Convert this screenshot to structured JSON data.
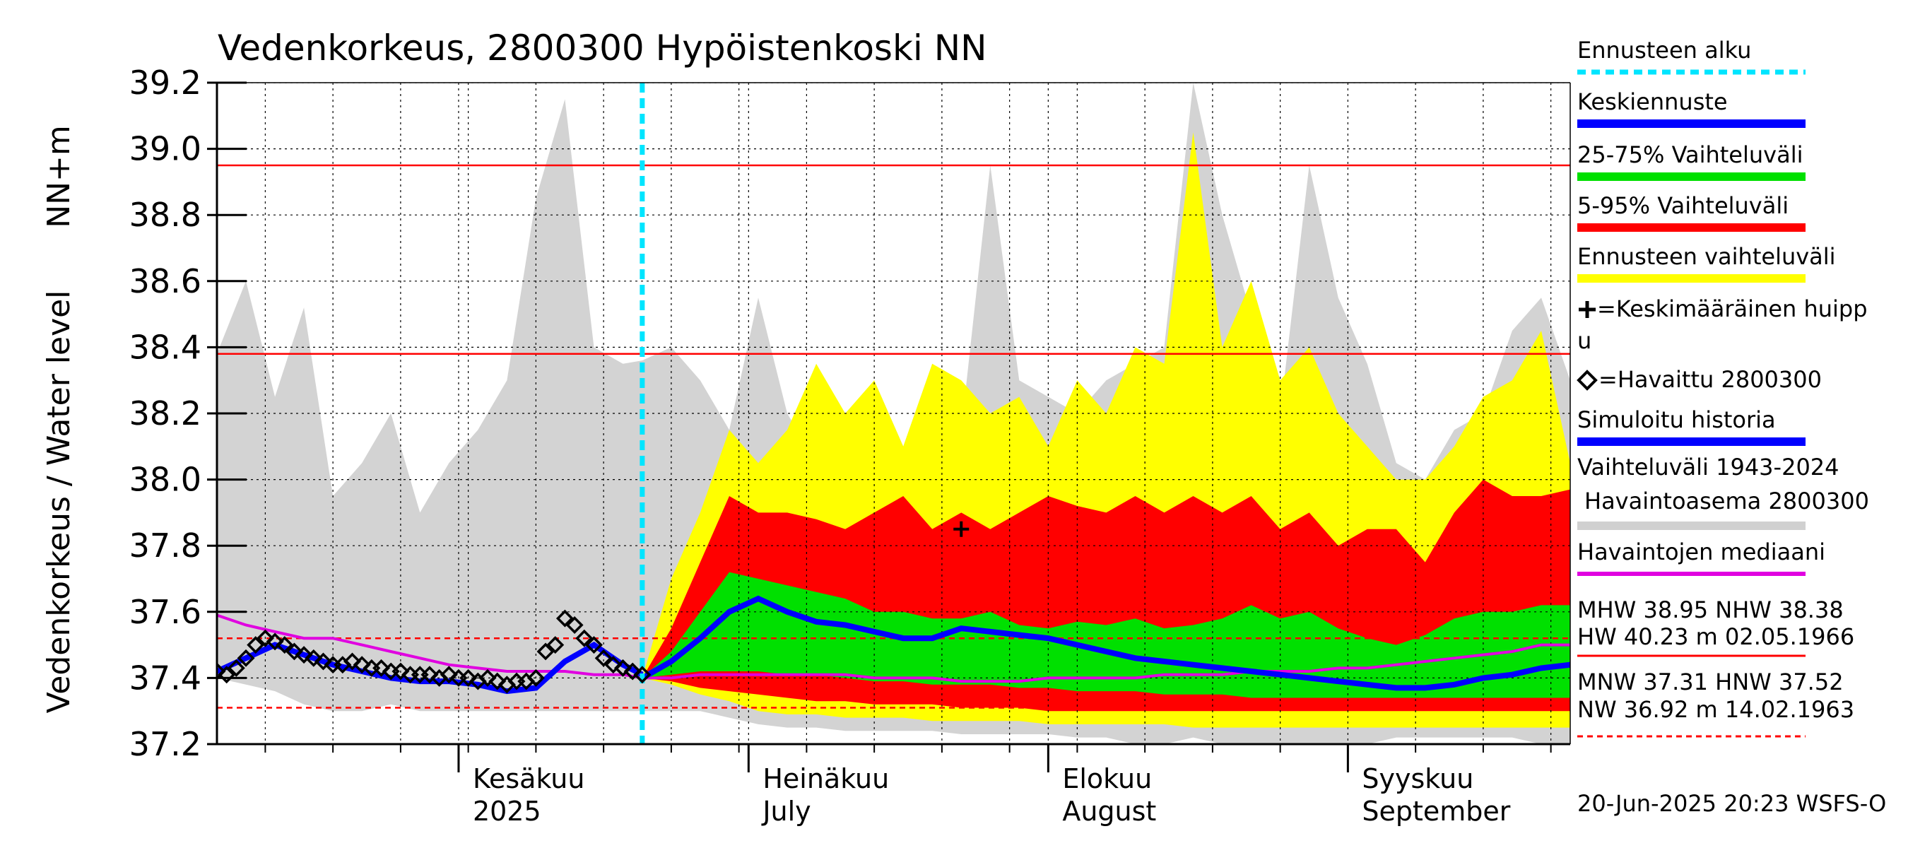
{
  "chart_data": {
    "type": "area",
    "title": "Vedenkorkeus, 2800300 Hypöistenkoski NN",
    "ylabel_line1": "NN+m",
    "ylabel_line2": "Vedenkorkeus / Water level",
    "ylim": [
      37.2,
      39.2
    ],
    "yticks": [
      "39.2",
      "39.0",
      "38.8",
      "38.6",
      "38.4",
      "38.2",
      "38.0",
      "37.8",
      "37.6",
      "37.4",
      "37.2"
    ],
    "xlim": [
      "2025-05-07",
      "2025-09-24"
    ],
    "month_labels": [
      {
        "date": "2025-06-01",
        "line1": "Kesäkuu",
        "line2": "2025"
      },
      {
        "date": "2025-07-01",
        "line1": "Heinäkuu",
        "line2": "July"
      },
      {
        "date": "2025-08-01",
        "line1": "Elokuu",
        "line2": "August"
      },
      {
        "date": "2025-09-01",
        "line1": "Syyskuu",
        "line2": "September"
      }
    ],
    "forecast_start": "2025-06-20",
    "reference_lines": {
      "MHW": 38.95,
      "NHW": 38.38,
      "HNW": 37.52,
      "MNW": 37.31
    },
    "x": [
      "2025-05-07",
      "2025-05-10",
      "2025-05-13",
      "2025-05-16",
      "2025-05-19",
      "2025-05-22",
      "2025-05-25",
      "2025-05-28",
      "2025-05-31",
      "2025-06-03",
      "2025-06-06",
      "2025-06-09",
      "2025-06-12",
      "2025-06-15",
      "2025-06-18",
      "2025-06-20",
      "2025-06-23",
      "2025-06-26",
      "2025-06-29",
      "2025-07-02",
      "2025-07-05",
      "2025-07-08",
      "2025-07-11",
      "2025-07-14",
      "2025-07-17",
      "2025-07-20",
      "2025-07-23",
      "2025-07-26",
      "2025-07-29",
      "2025-08-01",
      "2025-08-04",
      "2025-08-07",
      "2025-08-10",
      "2025-08-13",
      "2025-08-16",
      "2025-08-19",
      "2025-08-22",
      "2025-08-25",
      "2025-08-28",
      "2025-08-31",
      "2025-09-03",
      "2025-09-06",
      "2025-09-09",
      "2025-09-12",
      "2025-09-15",
      "2025-09-18",
      "2025-09-21",
      "2025-09-24"
    ],
    "history_range": {
      "name": "Vaihteluväli 1943-2024 Havaintoasema 2800300",
      "upper": [
        38.38,
        38.6,
        38.25,
        38.52,
        37.95,
        38.05,
        38.2,
        37.9,
        38.05,
        38.15,
        38.3,
        38.85,
        39.15,
        38.4,
        38.35,
        38.36,
        38.4,
        38.3,
        38.15,
        38.55,
        38.2,
        38.05,
        38.15,
        38.3,
        38.1,
        38.35,
        38.15,
        38.95,
        38.3,
        38.25,
        38.2,
        38.3,
        38.35,
        38.4,
        39.2,
        38.8,
        38.5,
        38.2,
        38.95,
        38.55,
        38.35,
        38.05,
        38.0,
        38.15,
        38.2,
        38.45,
        38.55,
        38.3
      ],
      "lower": [
        37.4,
        37.38,
        37.36,
        37.32,
        37.3,
        37.3,
        37.32,
        37.3,
        37.3,
        37.3,
        37.3,
        37.3,
        37.3,
        37.3,
        37.3,
        37.3,
        37.3,
        37.3,
        37.28,
        37.26,
        37.25,
        37.25,
        37.24,
        37.24,
        37.24,
        37.24,
        37.23,
        37.23,
        37.23,
        37.23,
        37.22,
        37.22,
        37.2,
        37.2,
        37.22,
        37.2,
        37.2,
        37.2,
        37.2,
        37.2,
        37.2,
        37.22,
        37.22,
        37.22,
        37.22,
        37.22,
        37.2,
        37.2
      ]
    },
    "series": [
      {
        "name": "Ennusteen vaihteluväli",
        "color": "#ffff00",
        "upper": [
          null,
          null,
          null,
          null,
          null,
          null,
          null,
          null,
          null,
          null,
          null,
          null,
          null,
          null,
          null,
          37.4,
          37.7,
          37.9,
          38.15,
          38.05,
          38.15,
          38.35,
          38.2,
          38.3,
          38.1,
          38.35,
          38.3,
          38.2,
          38.25,
          38.1,
          38.3,
          38.2,
          38.4,
          38.35,
          39.05,
          38.4,
          38.6,
          38.3,
          38.4,
          38.2,
          38.1,
          38.0,
          38.0,
          38.1,
          38.25,
          38.3,
          38.45,
          38.05
        ],
        "lower": [
          null,
          null,
          null,
          null,
          null,
          null,
          null,
          null,
          null,
          null,
          null,
          null,
          null,
          null,
          null,
          37.4,
          37.38,
          37.35,
          37.33,
          37.3,
          37.29,
          37.29,
          37.28,
          37.28,
          37.28,
          37.27,
          37.27,
          37.27,
          37.27,
          37.26,
          37.26,
          37.26,
          37.26,
          37.26,
          37.25,
          37.25,
          37.25,
          37.25,
          37.25,
          37.25,
          37.25,
          37.25,
          37.25,
          37.25,
          37.25,
          37.25,
          37.25,
          37.25
        ]
      },
      {
        "name": "5-95% Vaihteluväli",
        "color": "#ff0000",
        "upper": [
          null,
          null,
          null,
          null,
          null,
          null,
          null,
          null,
          null,
          null,
          null,
          null,
          null,
          null,
          null,
          37.4,
          37.55,
          37.75,
          37.95,
          37.9,
          37.9,
          37.88,
          37.85,
          37.9,
          37.95,
          37.85,
          37.9,
          37.85,
          37.9,
          37.95,
          37.92,
          37.9,
          37.95,
          37.9,
          37.95,
          37.9,
          37.95,
          37.85,
          37.9,
          37.8,
          37.85,
          37.85,
          37.75,
          37.9,
          38.0,
          37.95,
          37.95,
          37.97
        ],
        "lower": [
          null,
          null,
          null,
          null,
          null,
          null,
          null,
          null,
          null,
          null,
          null,
          null,
          null,
          null,
          null,
          37.4,
          37.39,
          37.37,
          37.36,
          37.35,
          37.34,
          37.33,
          37.33,
          37.32,
          37.32,
          37.32,
          37.31,
          37.31,
          37.31,
          37.3,
          37.3,
          37.3,
          37.3,
          37.3,
          37.3,
          37.3,
          37.3,
          37.3,
          37.3,
          37.3,
          37.3,
          37.3,
          37.3,
          37.3,
          37.3,
          37.3,
          37.3,
          37.3
        ]
      },
      {
        "name": "25-75% Vaihteluväli",
        "color": "#00e000",
        "upper": [
          null,
          null,
          null,
          null,
          null,
          null,
          null,
          null,
          null,
          null,
          null,
          null,
          null,
          null,
          null,
          37.4,
          37.48,
          37.6,
          37.72,
          37.7,
          37.68,
          37.66,
          37.64,
          37.6,
          37.6,
          37.58,
          37.58,
          37.6,
          37.56,
          37.55,
          37.57,
          37.56,
          37.58,
          37.55,
          37.56,
          37.58,
          37.62,
          37.58,
          37.6,
          37.55,
          37.52,
          37.5,
          37.53,
          37.58,
          37.6,
          37.6,
          37.62,
          37.62
        ],
        "lower": [
          null,
          null,
          null,
          null,
          null,
          null,
          null,
          null,
          null,
          null,
          null,
          null,
          null,
          null,
          null,
          37.4,
          37.41,
          37.42,
          37.42,
          37.42,
          37.41,
          37.41,
          37.4,
          37.39,
          37.39,
          37.38,
          37.38,
          37.38,
          37.37,
          37.37,
          37.36,
          37.36,
          37.36,
          37.35,
          37.35,
          37.35,
          37.34,
          37.34,
          37.34,
          37.34,
          37.34,
          37.34,
          37.34,
          37.34,
          37.34,
          37.34,
          37.34,
          37.34
        ]
      },
      {
        "name": "Keskiennuste",
        "color": "#0000ff",
        "values": [
          null,
          null,
          null,
          null,
          null,
          null,
          null,
          null,
          null,
          null,
          null,
          null,
          null,
          null,
          null,
          37.4,
          37.45,
          37.52,
          37.6,
          37.64,
          37.6,
          37.57,
          37.56,
          37.54,
          37.52,
          37.52,
          37.55,
          37.54,
          37.53,
          37.52,
          37.5,
          37.48,
          37.46,
          37.45,
          37.44,
          37.43,
          37.42,
          37.41,
          37.4,
          37.39,
          37.38,
          37.37,
          37.37,
          37.38,
          37.4,
          37.41,
          37.43,
          37.44
        ]
      },
      {
        "name": "Simuloitu historia",
        "color": "#0000ff",
        "values": [
          37.42,
          37.46,
          37.5,
          37.47,
          37.44,
          37.42,
          37.4,
          37.39,
          37.39,
          37.38,
          37.36,
          37.37,
          37.45,
          37.5,
          37.44,
          37.41,
          null,
          null,
          null,
          null,
          null,
          null,
          null,
          null,
          null,
          null,
          null,
          null,
          null,
          null,
          null,
          null,
          null,
          null,
          null,
          null,
          null,
          null,
          null,
          null,
          null,
          null,
          null,
          null,
          null,
          null,
          null,
          null
        ]
      },
      {
        "name": "Havaintojen mediaani",
        "color": "#e000e0",
        "values": [
          37.59,
          37.56,
          37.54,
          37.52,
          37.52,
          37.5,
          37.48,
          37.46,
          37.44,
          37.43,
          37.42,
          37.42,
          37.42,
          37.41,
          37.41,
          37.4,
          37.4,
          37.41,
          37.41,
          37.41,
          37.41,
          37.41,
          37.41,
          37.4,
          37.4,
          37.4,
          37.39,
          37.39,
          37.39,
          37.4,
          37.4,
          37.4,
          37.4,
          37.41,
          37.41,
          37.41,
          37.42,
          37.42,
          37.42,
          37.43,
          37.43,
          37.44,
          37.45,
          37.46,
          37.47,
          37.48,
          37.5,
          37.5
        ]
      }
    ],
    "observed": {
      "name": "=Havaittu 2800300",
      "dates": [
        "2025-05-07",
        "2025-05-08",
        "2025-05-09",
        "2025-05-10",
        "2025-05-11",
        "2025-05-12",
        "2025-05-13",
        "2025-05-14",
        "2025-05-15",
        "2025-05-16",
        "2025-05-17",
        "2025-05-18",
        "2025-05-19",
        "2025-05-20",
        "2025-05-21",
        "2025-05-22",
        "2025-05-23",
        "2025-05-24",
        "2025-05-25",
        "2025-05-26",
        "2025-05-27",
        "2025-05-28",
        "2025-05-29",
        "2025-05-30",
        "2025-05-31",
        "2025-06-01",
        "2025-06-02",
        "2025-06-03",
        "2025-06-04",
        "2025-06-05",
        "2025-06-06",
        "2025-06-07",
        "2025-06-08",
        "2025-06-09",
        "2025-06-10",
        "2025-06-11",
        "2025-06-12",
        "2025-06-13",
        "2025-06-14",
        "2025-06-15",
        "2025-06-16",
        "2025-06-17",
        "2025-06-18",
        "2025-06-19",
        "2025-06-20"
      ],
      "values": [
        37.42,
        37.41,
        37.43,
        37.46,
        37.5,
        37.52,
        37.51,
        37.5,
        37.48,
        37.47,
        37.46,
        37.45,
        37.44,
        37.44,
        37.45,
        37.44,
        37.43,
        37.43,
        37.42,
        37.42,
        37.41,
        37.41,
        37.41,
        37.4,
        37.41,
        37.4,
        37.4,
        37.39,
        37.4,
        37.39,
        37.38,
        37.39,
        37.39,
        37.4,
        37.48,
        37.5,
        37.58,
        37.56,
        37.52,
        37.5,
        37.46,
        37.44,
        37.43,
        37.42,
        37.41
      ]
    },
    "mean_peak": {
      "name": "=Keskimääräinen huippu",
      "date": "2025-07-23",
      "value": 37.85
    },
    "legend": [
      {
        "label": "Ennusteen alku",
        "color": "#00e5ff",
        "style": "dashed"
      },
      {
        "label": "Keskiennuste",
        "color": "#0000ff",
        "style": "line"
      },
      {
        "label": "25-75% Vaihteluväli",
        "color": "#00e000",
        "style": "line"
      },
      {
        "label": "5-95% Vaihteluväli",
        "color": "#ff0000",
        "style": "line"
      },
      {
        "label": "Ennusteen vaihteluväli",
        "color": "#ffff00",
        "style": "line"
      },
      {
        "label": "=Keskimääräinen huipp",
        "label2": "u",
        "style": "plus"
      },
      {
        "label": "=Havaittu 2800300",
        "style": "diamond"
      },
      {
        "label": "Simuloitu historia",
        "color": "#0000ff",
        "style": "line"
      },
      {
        "label": "Vaihteluväli 1943-2024",
        "label2": "Havaintoasema 2800300",
        "color": "#d0d0d0",
        "style": "line"
      },
      {
        "label": "Havaintojen mediaani",
        "color": "#e000e0",
        "style": "line"
      }
    ],
    "stats_upper": {
      "line1": "MHW  38.95 NHW  38.38",
      "line2": "HW  40.23 m 02.05.1966"
    },
    "stats_lower": {
      "line1": "MNW  37.31 HNW  37.52",
      "line2": "NW  36.92 m 14.02.1963"
    },
    "footer": "20-Jun-2025 20:23 WSFS-O"
  }
}
